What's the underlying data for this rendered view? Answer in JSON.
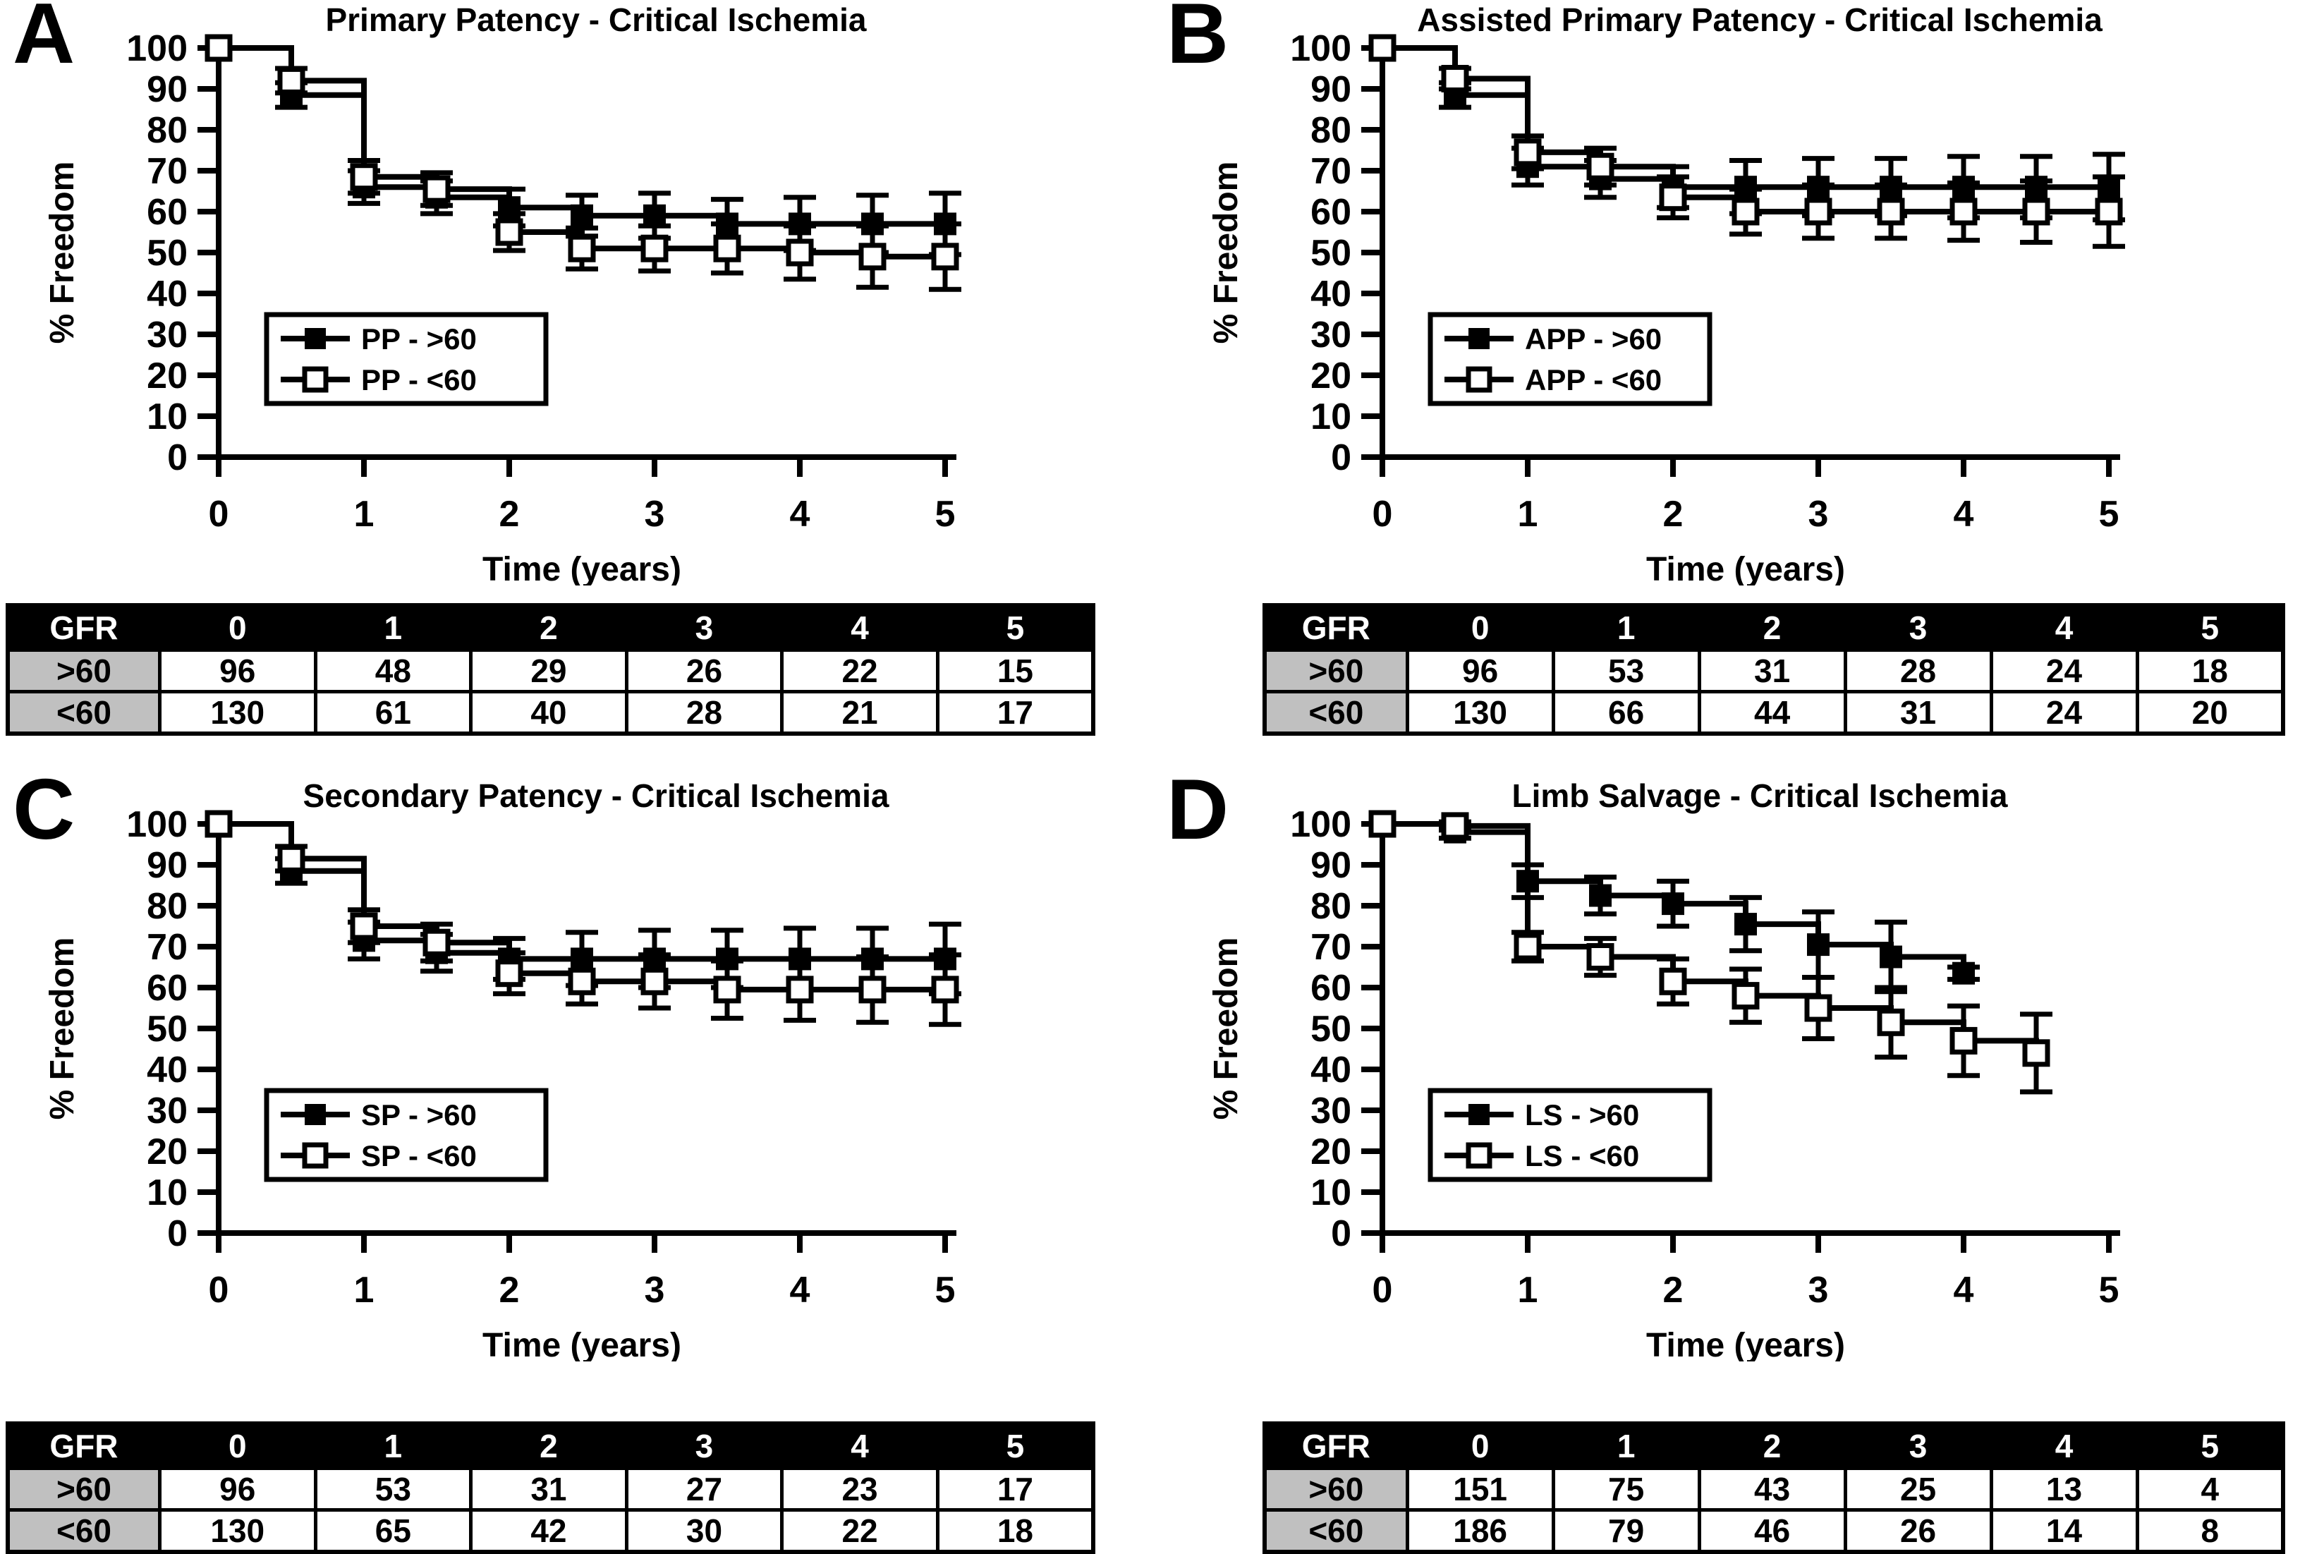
{
  "page": {
    "background": "#ffffff",
    "ink": "#000000",
    "row_label_grey": "#c0c0c0"
  },
  "chart_data": [
    {
      "type": "line",
      "subtype": "kaplan-meier-step",
      "panel": "A",
      "title": "Primary Patency - Critical Ischemia",
      "xlabel": "Time (years)",
      "ylabel": "% Freedom",
      "xlim": [
        0,
        5
      ],
      "ylim": [
        0,
        100
      ],
      "xticks": [
        0,
        1,
        2,
        3,
        4,
        5
      ],
      "yticks": [
        100,
        90,
        80,
        70,
        60,
        50,
        40,
        30,
        20,
        10,
        0
      ],
      "grid": false,
      "legend_position": "left-middle",
      "series": [
        {
          "name": "PP - >60",
          "marker": "filled-square",
          "x": [
            0,
            0.5,
            1,
            1.5,
            2,
            2.5,
            3,
            3.5,
            4,
            4.5,
            5
          ],
          "values": [
            100,
            88.5,
            66,
            63.5,
            61,
            59,
            59,
            57,
            57,
            57,
            57
          ],
          "error": [
            0,
            3,
            4,
            4,
            4.5,
            5,
            5.5,
            6,
            6.5,
            7,
            7.5
          ]
        },
        {
          "name": "PP - <60",
          "marker": "open-square",
          "x": [
            0,
            0.5,
            1,
            1.5,
            2,
            2.5,
            3,
            3.5,
            4,
            4.5,
            5
          ],
          "values": [
            100,
            92,
            68.5,
            65.5,
            55,
            51,
            51,
            51,
            50,
            49,
            49
          ],
          "error": [
            0,
            3,
            4,
            4,
            4.5,
            5,
            5.5,
            6,
            6.5,
            7.5,
            8
          ]
        }
      ],
      "risk_table": {
        "header": [
          "GFR",
          "0",
          "1",
          "2",
          "3",
          "4",
          "5"
        ],
        "rows": [
          [
            ">60",
            "96",
            "48",
            "29",
            "26",
            "22",
            "15"
          ],
          [
            "<60",
            "130",
            "61",
            "40",
            "28",
            "21",
            "17"
          ]
        ]
      }
    },
    {
      "type": "line",
      "subtype": "kaplan-meier-step",
      "panel": "B",
      "title": "Assisted Primary Patency - Critical Ischemia",
      "xlabel": "Time (years)",
      "ylabel": "% Freedom",
      "xlim": [
        0,
        5
      ],
      "ylim": [
        0,
        100
      ],
      "xticks": [
        0,
        1,
        2,
        3,
        4,
        5
      ],
      "yticks": [
        100,
        90,
        80,
        70,
        60,
        50,
        40,
        30,
        20,
        10,
        0
      ],
      "grid": false,
      "legend_position": "left-middle",
      "series": [
        {
          "name": "APP - >60",
          "marker": "filled-square",
          "x": [
            0,
            0.5,
            1,
            1.5,
            2,
            2.5,
            3,
            3.5,
            4,
            4.5,
            5
          ],
          "values": [
            100,
            88.5,
            71,
            68,
            66,
            66,
            66,
            66,
            66,
            66,
            66
          ],
          "error": [
            0,
            3,
            4.5,
            4.5,
            5,
            6.5,
            7,
            7,
            7.5,
            7.5,
            8
          ]
        },
        {
          "name": "APP - <60",
          "marker": "open-square",
          "x": [
            0,
            0.5,
            1,
            1.5,
            2,
            2.5,
            3,
            3.5,
            4,
            4.5,
            5
          ],
          "values": [
            100,
            92.5,
            74.5,
            71,
            63.5,
            60,
            60,
            60,
            60,
            60,
            60
          ],
          "error": [
            0,
            2.5,
            4,
            4.5,
            5,
            5.5,
            6.5,
            6.5,
            7,
            7.5,
            8.5
          ]
        }
      ],
      "risk_table": {
        "header": [
          "GFR",
          "0",
          "1",
          "2",
          "3",
          "4",
          "5"
        ],
        "rows": [
          [
            ">60",
            "96",
            "53",
            "31",
            "28",
            "24",
            "18"
          ],
          [
            "<60",
            "130",
            "66",
            "44",
            "31",
            "24",
            "20"
          ]
        ]
      }
    },
    {
      "type": "line",
      "subtype": "kaplan-meier-step",
      "panel": "C",
      "title": "Secondary Patency - Critical Ischemia",
      "xlabel": "Time (years)",
      "ylabel": "% Freedom",
      "xlim": [
        0,
        5
      ],
      "ylim": [
        0,
        100
      ],
      "xticks": [
        0,
        1,
        2,
        3,
        4,
        5
      ],
      "yticks": [
        100,
        90,
        80,
        70,
        60,
        50,
        40,
        30,
        20,
        10,
        0
      ],
      "grid": false,
      "legend_position": "left-middle",
      "series": [
        {
          "name": "SP - >60",
          "marker": "filled-square",
          "x": [
            0,
            0.5,
            1,
            1.5,
            2,
            2.5,
            3,
            3.5,
            4,
            4.5,
            5
          ],
          "values": [
            100,
            88.5,
            71.5,
            68.5,
            67,
            67,
            67,
            67,
            67,
            67,
            67
          ],
          "error": [
            0,
            3,
            4.5,
            4.5,
            5,
            6.5,
            7,
            7,
            7.5,
            7.5,
            8.5
          ]
        },
        {
          "name": "SP - <60",
          "marker": "open-square",
          "x": [
            0,
            0.5,
            1,
            1.5,
            2,
            2.5,
            3,
            3.5,
            4,
            4.5,
            5
          ],
          "values": [
            100,
            91.5,
            75,
            71,
            63.5,
            61.5,
            61.5,
            59.5,
            59.5,
            59.5,
            59.5
          ],
          "error": [
            0,
            3,
            4,
            4.5,
            5,
            5.5,
            6.5,
            7,
            7.5,
            8,
            8.5
          ]
        }
      ],
      "risk_table": {
        "header": [
          "GFR",
          "0",
          "1",
          "2",
          "3",
          "4",
          "5"
        ],
        "rows": [
          [
            ">60",
            "96",
            "53",
            "31",
            "27",
            "23",
            "17"
          ],
          [
            "<60",
            "130",
            "65",
            "42",
            "30",
            "22",
            "18"
          ]
        ]
      }
    },
    {
      "type": "line",
      "subtype": "kaplan-meier-step",
      "panel": "D",
      "title": "Limb Salvage - Critical Ischemia",
      "xlabel": "Time (years)",
      "ylabel": "% Freedom",
      "xlim": [
        0,
        5
      ],
      "ylim": [
        0,
        100
      ],
      "xticks": [
        0,
        1,
        2,
        3,
        4,
        5
      ],
      "yticks": [
        100,
        90,
        80,
        70,
        60,
        50,
        40,
        30,
        20,
        10,
        0
      ],
      "grid": false,
      "legend_position": "left-middle",
      "series": [
        {
          "name": "LS - >60",
          "marker": "filled-square",
          "x": [
            0,
            0.5,
            1,
            1.5,
            2,
            2.5,
            3,
            3.5,
            4
          ],
          "values": [
            100,
            98,
            86,
            82.5,
            80.5,
            75.5,
            70.5,
            67.5,
            63.5
          ],
          "error": [
            0,
            1.5,
            4,
            4.5,
            5.5,
            6.5,
            8,
            8.5,
            1.5
          ]
        },
        {
          "name": "LS - <60",
          "marker": "open-square",
          "x": [
            0,
            0.5,
            1,
            1.5,
            2,
            2.5,
            3,
            3.5,
            4,
            4.5
          ],
          "values": [
            100,
            99.5,
            70,
            67.5,
            61.5,
            58,
            55,
            51.5,
            47,
            44
          ],
          "error": [
            0,
            1,
            3.5,
            4.5,
            5.5,
            6.5,
            7.5,
            8.5,
            8.5,
            9.5
          ]
        }
      ],
      "risk_table": {
        "header": [
          "GFR",
          "0",
          "1",
          "2",
          "3",
          "4",
          "5"
        ],
        "rows": [
          [
            ">60",
            "151",
            "75",
            "43",
            "25",
            "13",
            "4"
          ],
          [
            "<60",
            "186",
            "79",
            "46",
            "26",
            "14",
            "8"
          ]
        ]
      }
    }
  ]
}
